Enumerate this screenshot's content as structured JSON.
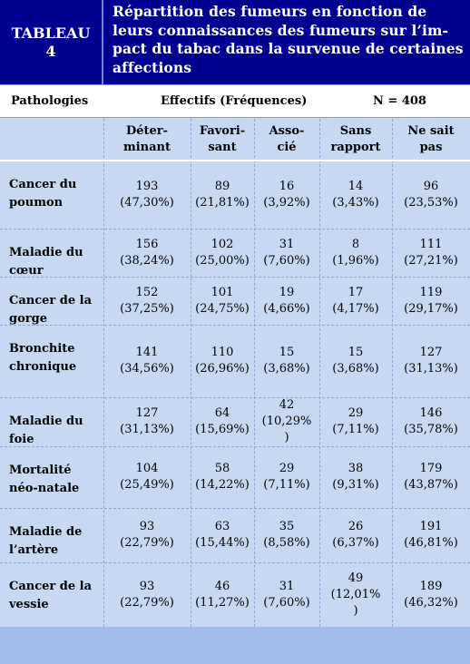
{
  "title": {
    "label_line1": "TABLEAU",
    "label_line2": "4",
    "text": "Répartition des fumeurs en fonction de leurs connaissances des fumeurs sur l’im- pact du tabac dans la survenue de certaines affections"
  },
  "header": {
    "pathologies": "Pathologies",
    "effectifs": "Effectifs (Fréquences)",
    "n": "N = 408"
  },
  "columns": [
    {
      "l1": "Déter-",
      "l2": "minant"
    },
    {
      "l1": "Favori-",
      "l2": "sant"
    },
    {
      "l1": "Asso-",
      "l2": "cié"
    },
    {
      "l1": "Sans",
      "l2": "rapport"
    },
    {
      "l1": "Ne sait",
      "l2": "pas"
    }
  ],
  "rows": [
    {
      "l1": "Cancer du",
      "l2": "poumon",
      "cells": [
        [
          "193",
          "(47,30%)"
        ],
        [
          "89",
          "(21,81%)"
        ],
        [
          "16",
          "(3,92%)"
        ],
        [
          "14",
          "(3,43%)"
        ],
        [
          "96",
          "(23,53%)"
        ]
      ]
    },
    {
      "l1": "Maladie du",
      "l2": "cœur",
      "cells": [
        [
          "156",
          "(38,24%)"
        ],
        [
          "102",
          "(25,00%)"
        ],
        [
          "31",
          "(7,60%)"
        ],
        [
          "8",
          "(1,96%)"
        ],
        [
          "111",
          "(27,21%)"
        ]
      ]
    },
    {
      "l1": "Cancer de la",
      "l2": "gorge",
      "cells": [
        [
          "152",
          "(37,25%)"
        ],
        [
          "101",
          "(24,75%)"
        ],
        [
          "19",
          "(4,66%)"
        ],
        [
          "17",
          "(4,17%)"
        ],
        [
          "119",
          "(29,17%)"
        ]
      ]
    },
    {
      "l1": "Bronchite",
      "l2": "chronique",
      "cells": [
        [
          "141",
          "(34,56%)"
        ],
        [
          "110",
          "(26,96%)"
        ],
        [
          "15",
          "(3,68%)"
        ],
        [
          "15",
          "(3,68%)"
        ],
        [
          "127",
          "(31,13%)"
        ]
      ]
    },
    {
      "l1": "Maladie du",
      "l2": "foie",
      "cells": [
        [
          "127",
          "(31,13%)"
        ],
        [
          "64",
          "(15,69%)"
        ],
        [
          "42",
          "(10,29%",
          ")"
        ],
        [
          "29",
          "(7,11%)"
        ],
        [
          "146",
          "(35,78%)"
        ]
      ]
    },
    {
      "l1": "Mortalité",
      "l2": "néo-natale",
      "cells": [
        [
          "104",
          "(25,49%)"
        ],
        [
          "58",
          "(14,22%)"
        ],
        [
          "29",
          "(7,11%)"
        ],
        [
          "38",
          "(9,31%)"
        ],
        [
          "179",
          "(43,87%)"
        ]
      ]
    },
    {
      "l1": "Maladie de",
      "l2": "l’artère",
      "cells": [
        [
          "93",
          "(22,79%)"
        ],
        [
          "63",
          "(15,44%)"
        ],
        [
          "35",
          "(8,58%)"
        ],
        [
          "26",
          "(6,37%)"
        ],
        [
          "191",
          "(46,81%)"
        ]
      ]
    },
    {
      "l1": "Cancer de la",
      "l2": "vessie",
      "cells": [
        [
          "93",
          "(22,79%)"
        ],
        [
          "46",
          "(11,27%)"
        ],
        [
          "31",
          "(7,60%)"
        ],
        [
          "49",
          "(12,01%",
          ")"
        ],
        [
          "189",
          "(46,32%)"
        ]
      ]
    }
  ]
}
